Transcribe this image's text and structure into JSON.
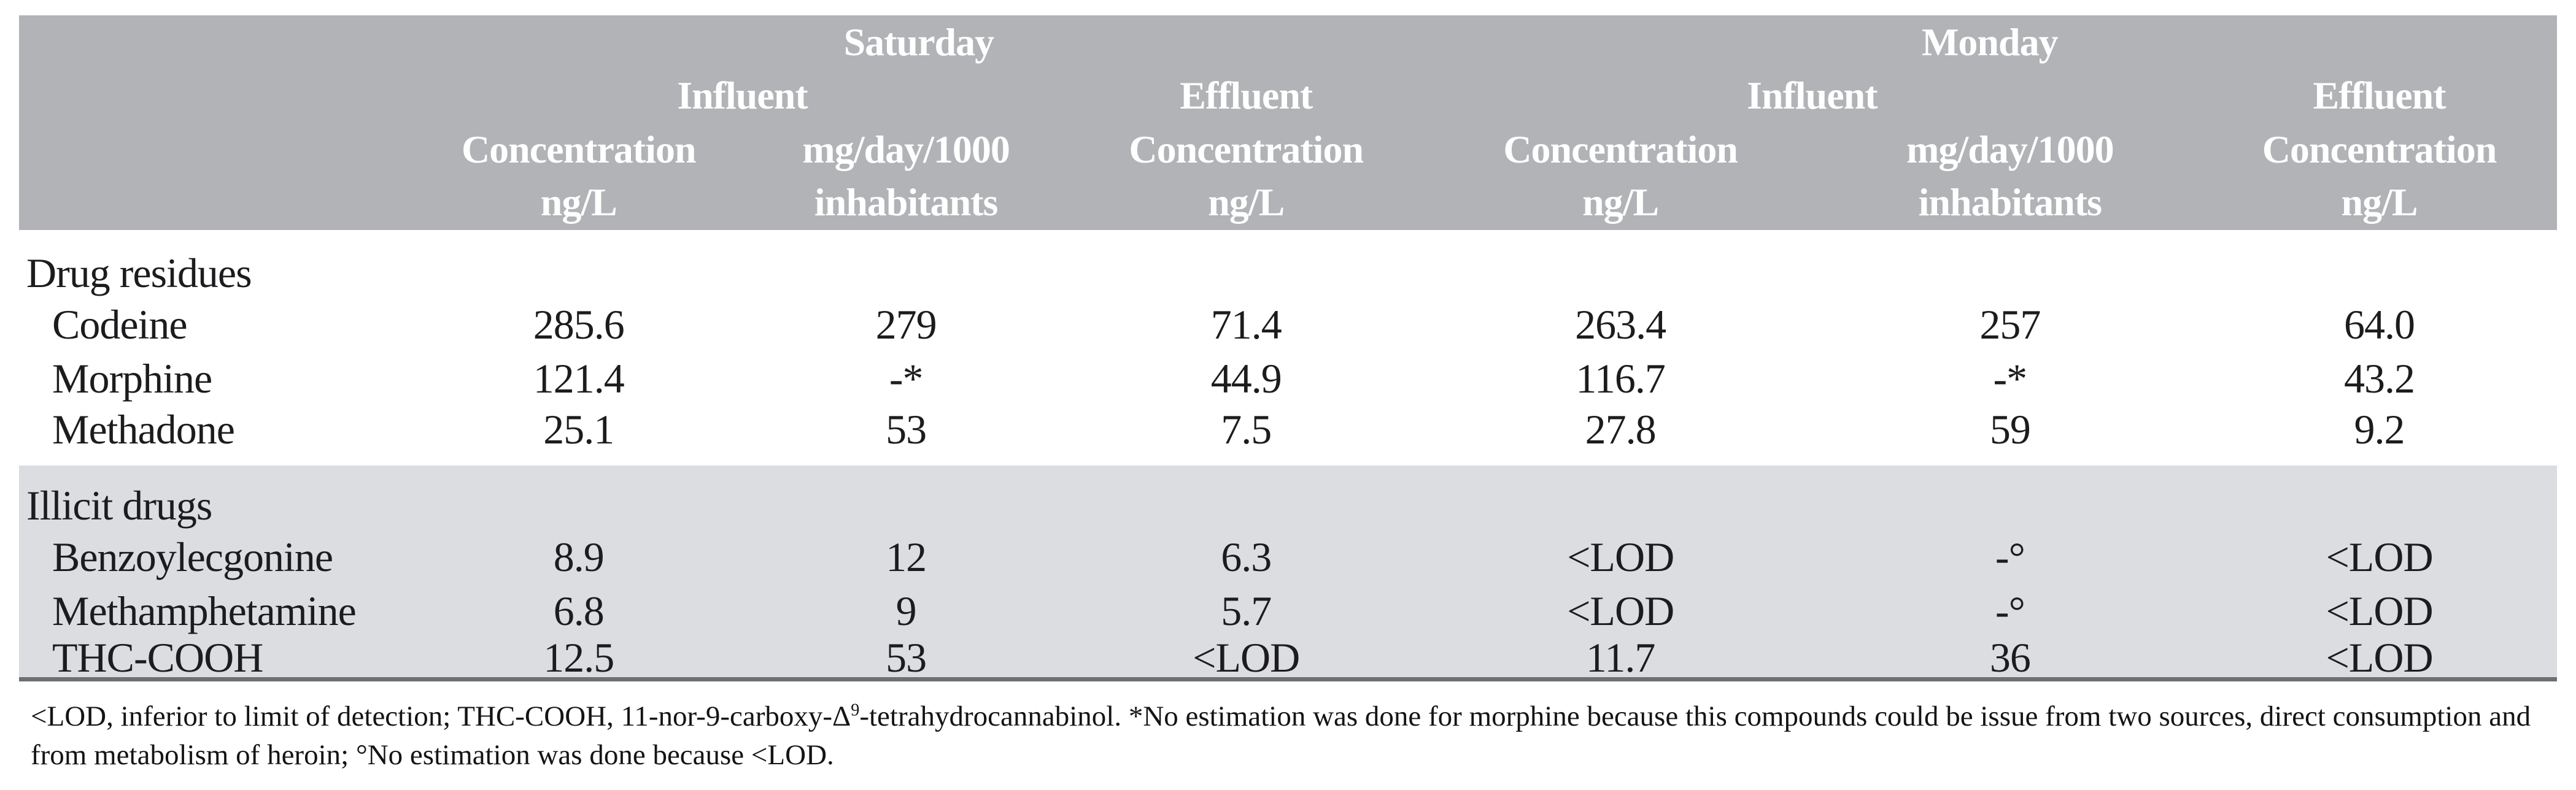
{
  "table": {
    "header": {
      "days": [
        "Saturday",
        "Monday"
      ],
      "influent": "Influent",
      "effluent": "Effluent",
      "concentration": "Concentration",
      "concentration_unit": "ng/L",
      "load": "mg/day/1000",
      "load_unit": "inhabitants"
    },
    "sections": [
      {
        "title": "Drug residues",
        "rows": [
          {
            "label": "Codeine",
            "values": [
              "285.6",
              "279",
              "71.4",
              "263.4",
              "257",
              "64.0"
            ]
          },
          {
            "label": "Morphine",
            "values": [
              "121.4",
              "-*",
              "44.9",
              "116.7",
              "-*",
              "43.2"
            ]
          },
          {
            "label": "Methadone",
            "values": [
              "25.1",
              "53",
              "7.5",
              "27.8",
              "59",
              "9.2"
            ]
          }
        ]
      },
      {
        "title": "Illicit drugs",
        "rows": [
          {
            "label": "Benzoylecgonine",
            "values": [
              "8.9",
              "12",
              "6.3",
              "<LOD",
              "-°",
              "<LOD"
            ]
          },
          {
            "label": "Methamphetamine",
            "values": [
              "6.8",
              "9",
              "5.7",
              "<LOD",
              "-°",
              "<LOD"
            ]
          },
          {
            "label": "THC-COOH",
            "values": [
              "12.5",
              "53",
              "<LOD",
              "11.7",
              "36",
              "<LOD"
            ]
          }
        ]
      }
    ],
    "footnote": {
      "part1": "<LOD, inferior to limit of detection; THC-COOH, 11-nor-9-carboxy-Δ",
      "sup": "9",
      "part2": "-tetrahydrocannabinol. *No estimation was done for morphine because this compounds could be issue from two sources, direct consumption and from metabolism of heroin; °No estimation was done because <LOD."
    },
    "colors": {
      "header_bg": "#b1b3b6",
      "illicit_bg": "#dcdde0",
      "rule": "#6f7072"
    }
  }
}
